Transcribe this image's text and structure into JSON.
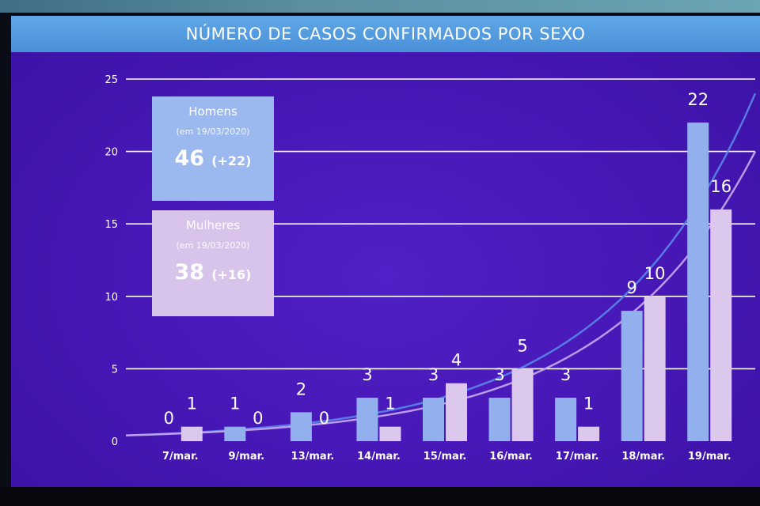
{
  "title": "NÚMERO DE CASOS CONFIRMADOS POR SEXO",
  "boxes": {
    "homens": {
      "label": "Homens",
      "date": "(em 19/03/2020)",
      "total": "46",
      "delta": "(+22)"
    },
    "mulheres": {
      "label": "Mulheres",
      "date": "(em 19/03/2020)",
      "total": "38",
      "delta": "(+16)"
    }
  },
  "colors": {
    "background": "#4a1ab8",
    "title_bar": "#4a8fd8",
    "homens": "#93b0ee",
    "mulheres": "#dcc8ec",
    "trend_homens": "#5a86e8",
    "trend_mulheres": "#c8a8ec",
    "grid": "#ffffff"
  },
  "chart_data": {
    "type": "bar",
    "categories": [
      "7/mar.",
      "9/mar.",
      "13/mar.",
      "14/mar.",
      "15/mar.",
      "16/mar.",
      "17/mar.",
      "18/mar.",
      "19/mar."
    ],
    "series": [
      {
        "name": "Homens",
        "values": [
          0,
          1,
          2,
          3,
          3,
          3,
          3,
          9,
          22
        ]
      },
      {
        "name": "Mulheres",
        "values": [
          1,
          0,
          0,
          1,
          4,
          5,
          1,
          10,
          16
        ]
      }
    ],
    "ylim": [
      0,
      25
    ],
    "yticks": [
      0,
      5,
      10,
      15,
      20,
      25
    ],
    "grid": true,
    "data_labels": true,
    "trendlines": "exponential"
  }
}
